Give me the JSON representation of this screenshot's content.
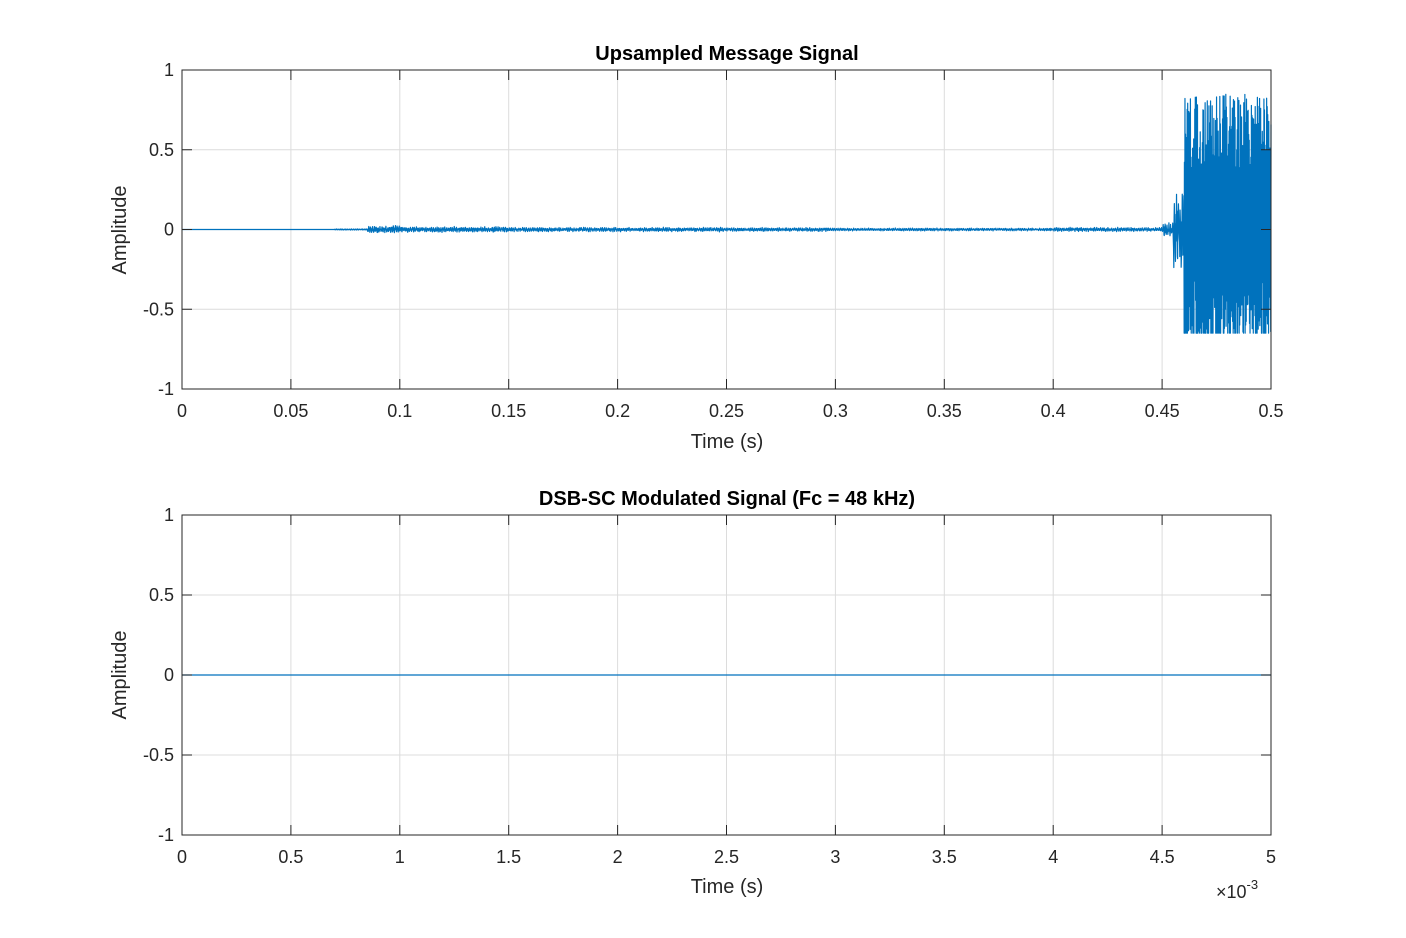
{
  "chart_data": [
    {
      "type": "line",
      "title": "Upsampled Message Signal",
      "xlabel": "Time (s)",
      "ylabel": "Amplitude",
      "xlim": [
        0,
        0.5
      ],
      "ylim": [
        -1,
        1
      ],
      "xticks": [
        0,
        0.05,
        0.1,
        0.15,
        0.2,
        0.25,
        0.3,
        0.35,
        0.4,
        0.45,
        0.5
      ],
      "xtick_labels": [
        "0",
        "0.05",
        "0.1",
        "0.15",
        "0.2",
        "0.25",
        "0.3",
        "0.35",
        "0.4",
        "0.45",
        "0.5"
      ],
      "yticks": [
        -1,
        -0.5,
        0,
        0.5,
        1
      ],
      "ytick_labels": [
        "-1",
        "-0.5",
        "0",
        "0.5",
        "1"
      ],
      "grid": true,
      "line_color": "#0072BD",
      "series": [
        {
          "segments": [
            {
              "x_start": 0,
              "x_end": 0.07,
              "amplitude": 0
            },
            {
              "x_start": 0.07,
              "x_end": 0.085,
              "amplitude": 0.004
            },
            {
              "x_start": 0.085,
              "x_end": 0.1,
              "amplitude": 0.022
            },
            {
              "x_start": 0.1,
              "x_end": 0.15,
              "amplitude": 0.016
            },
            {
              "x_start": 0.15,
              "x_end": 0.25,
              "amplitude": 0.013
            },
            {
              "x_start": 0.25,
              "x_end": 0.3,
              "amplitude": 0.011
            },
            {
              "x_start": 0.3,
              "x_end": 0.4,
              "amplitude": 0.008
            },
            {
              "x_start": 0.4,
              "x_end": 0.45,
              "amplitude": 0.012
            },
            {
              "x_start": 0.45,
              "x_end": 0.455,
              "amplitude": 0.04
            },
            {
              "x_start": 0.455,
              "x_end": 0.46,
              "amplitude": 0.25
            },
            {
              "x_start": 0.46,
              "x_end": 0.5,
              "amplitude": 0.85
            }
          ],
          "approx_max": 0.88,
          "approx_min": -0.65
        }
      ]
    },
    {
      "type": "line",
      "title": "DSB-SC Modulated Signal (Fc = 48 kHz)",
      "xlabel": "Time (s)",
      "ylabel": "Amplitude",
      "xlim": [
        0,
        0.005
      ],
      "ylim": [
        -1,
        1
      ],
      "xticks": [
        0,
        0.0005,
        0.001,
        0.0015,
        0.002,
        0.0025,
        0.003,
        0.0035,
        0.004,
        0.0045,
        0.005
      ],
      "xtick_labels": [
        "0",
        "0.5",
        "1",
        "1.5",
        "2",
        "2.5",
        "3",
        "3.5",
        "4",
        "4.5",
        "5"
      ],
      "x_exponent_base": "×10",
      "x_exponent": "-3",
      "yticks": [
        -1,
        -0.5,
        0,
        0.5,
        1
      ],
      "ytick_labels": [
        "-1",
        "-0.5",
        "0",
        "0.5",
        "1"
      ],
      "grid": true,
      "line_color": "#0072BD",
      "series": [
        {
          "x": [
            0,
            0.005
          ],
          "y": [
            0,
            0
          ]
        }
      ]
    }
  ]
}
